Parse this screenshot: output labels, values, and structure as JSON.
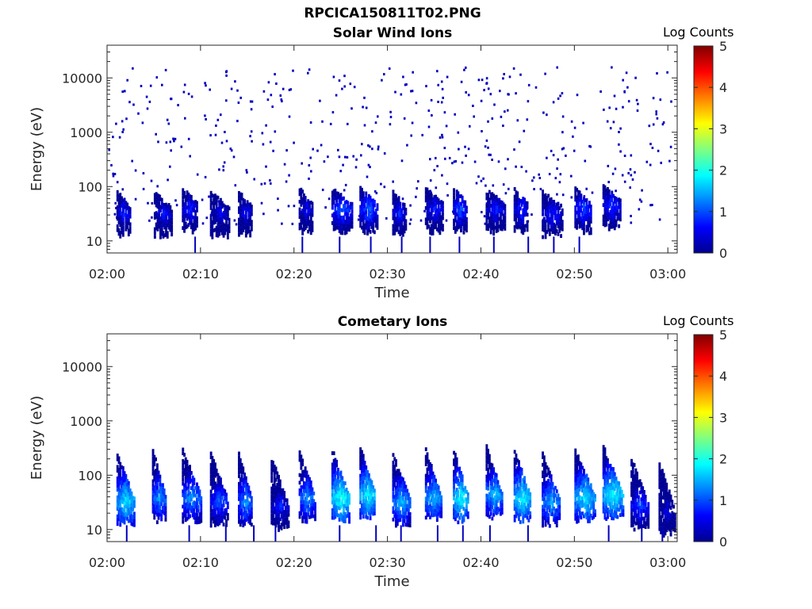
{
  "figure": {
    "title": "RPCICA150811T02.PNG"
  },
  "chart_data": [
    {
      "type": "heatmap",
      "title": "Solar Wind Ions",
      "xlabel": "Time",
      "ylabel": "Energy (eV)",
      "x_ticks": [
        "02:00",
        "02:10",
        "02:20",
        "02:30",
        "02:40",
        "02:50",
        "03:00"
      ],
      "y_ticks": [
        "10",
        "100",
        "1000",
        "10000"
      ],
      "y_scale": "log",
      "ylim": [
        6,
        40000
      ],
      "xlim_minutes": [
        0,
        61
      ],
      "colorbar": {
        "label": "Log Counts",
        "range": [
          0,
          5
        ],
        "ticks": [
          "0",
          "1",
          "2",
          "3",
          "4",
          "5"
        ],
        "colormap": "jet"
      },
      "description_clusters": [
        {
          "t_min": 2.0,
          "e_center": 30,
          "log_counts": 0.8
        },
        {
          "t_min": 6.0,
          "e_center": 30,
          "log_counts": 0.7
        },
        {
          "t_min": 9.0,
          "e_center": 35,
          "log_counts": 0.8
        },
        {
          "t_min": 12.0,
          "e_center": 30,
          "log_counts": 0.6
        },
        {
          "t_min": 15.0,
          "e_center": 30,
          "log_counts": 0.7
        },
        {
          "t_min": 21.5,
          "e_center": 35,
          "log_counts": 0.7
        },
        {
          "t_min": 25.0,
          "e_center": 35,
          "log_counts": 1.0
        },
        {
          "t_min": 28.0,
          "e_center": 35,
          "log_counts": 1.1
        },
        {
          "t_min": 31.5,
          "e_center": 30,
          "log_counts": 0.8
        },
        {
          "t_min": 35.0,
          "e_center": 35,
          "log_counts": 0.8
        },
        {
          "t_min": 38.0,
          "e_center": 35,
          "log_counts": 1.0
        },
        {
          "t_min": 41.5,
          "e_center": 35,
          "log_counts": 0.8
        },
        {
          "t_min": 44.5,
          "e_center": 35,
          "log_counts": 0.9
        },
        {
          "t_min": 47.5,
          "e_center": 30,
          "log_counts": 0.8
        },
        {
          "t_min": 51.0,
          "e_center": 35,
          "log_counts": 1.0
        },
        {
          "t_min": 54.0,
          "e_center": 40,
          "log_counts": 0.9
        }
      ],
      "background": "sparse single counts (log counts ~0.3) scattered 20-15000 eV"
    },
    {
      "type": "heatmap",
      "title": "Cometary Ions",
      "xlabel": "Time",
      "ylabel": "Energy (eV)",
      "x_ticks": [
        "02:00",
        "02:10",
        "02:20",
        "02:30",
        "02:40",
        "02:50",
        "03:00"
      ],
      "y_ticks": [
        "10",
        "100",
        "1000",
        "10000"
      ],
      "y_scale": "log",
      "ylim": [
        6,
        40000
      ],
      "xlim_minutes": [
        0,
        61
      ],
      "colorbar": {
        "label": "Log Counts",
        "range": [
          0,
          5
        ],
        "ticks": [
          "0",
          "1",
          "2",
          "3",
          "4",
          "5"
        ],
        "colormap": "jet"
      },
      "description_clusters": [
        {
          "t_min": 2.0,
          "e_center": 30,
          "log_counts": 1.8
        },
        {
          "t_min": 5.8,
          "e_center": 35,
          "log_counts": 1.4
        },
        {
          "t_min": 9.0,
          "e_center": 35,
          "log_counts": 1.4
        },
        {
          "t_min": 12.0,
          "e_center": 30,
          "log_counts": 1.1
        },
        {
          "t_min": 15.0,
          "e_center": 30,
          "log_counts": 1.4
        },
        {
          "t_min": 18.5,
          "e_center": 25,
          "log_counts": 0.8
        },
        {
          "t_min": 21.5,
          "e_center": 35,
          "log_counts": 1.4
        },
        {
          "t_min": 25.0,
          "e_center": 35,
          "log_counts": 2.0
        },
        {
          "t_min": 28.0,
          "e_center": 40,
          "log_counts": 1.9
        },
        {
          "t_min": 31.5,
          "e_center": 30,
          "log_counts": 1.5
        },
        {
          "t_min": 35.0,
          "e_center": 35,
          "log_counts": 1.6
        },
        {
          "t_min": 38.0,
          "e_center": 35,
          "log_counts": 1.9
        },
        {
          "t_min": 41.5,
          "e_center": 40,
          "log_counts": 1.6
        },
        {
          "t_min": 44.5,
          "e_center": 35,
          "log_counts": 1.9
        },
        {
          "t_min": 47.5,
          "e_center": 30,
          "log_counts": 1.5
        },
        {
          "t_min": 51.0,
          "e_center": 35,
          "log_counts": 1.8
        },
        {
          "t_min": 54.0,
          "e_center": 40,
          "log_counts": 1.9
        },
        {
          "t_min": 57.0,
          "e_center": 25,
          "log_counts": 1.0
        },
        {
          "t_min": 60.0,
          "e_center": 20,
          "log_counts": 0.6
        }
      ]
    }
  ]
}
